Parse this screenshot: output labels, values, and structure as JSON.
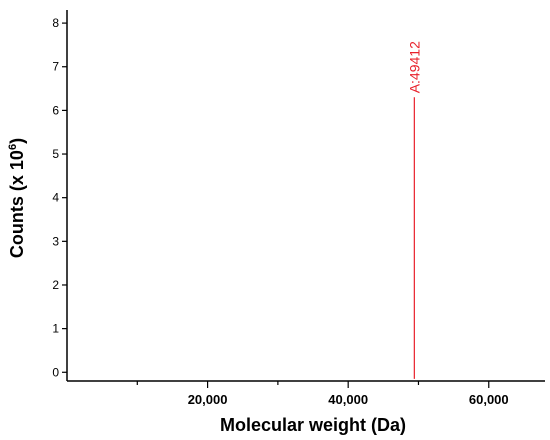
{
  "chart_data": {
    "type": "bar",
    "xlabel": "Molecular weight (Da)",
    "ylabel_main": "Counts (x 10",
    "ylabel_exp": "6",
    "ylabel_close": ")",
    "xlim": [
      0,
      68000
    ],
    "ylim": [
      -0.2,
      8.3
    ],
    "xticks_major": [
      20000,
      40000,
      60000
    ],
    "xticks_all": [
      10000,
      20000,
      30000,
      40000,
      50000,
      60000
    ],
    "xtick_labels": [
      "20,000",
      "40,000",
      "60,000"
    ],
    "yticks": [
      0,
      1,
      2,
      3,
      4,
      5,
      6,
      7,
      8
    ],
    "ytick_labels": [
      "0",
      "1",
      "2",
      "3",
      "4",
      "5",
      "6",
      "7",
      "8"
    ],
    "peaks": [
      {
        "x": 49412,
        "y": 6.3,
        "label": "A:49412"
      }
    ],
    "colors": {
      "peak": "#e8202a",
      "axis": "#000000"
    },
    "grid": false
  }
}
